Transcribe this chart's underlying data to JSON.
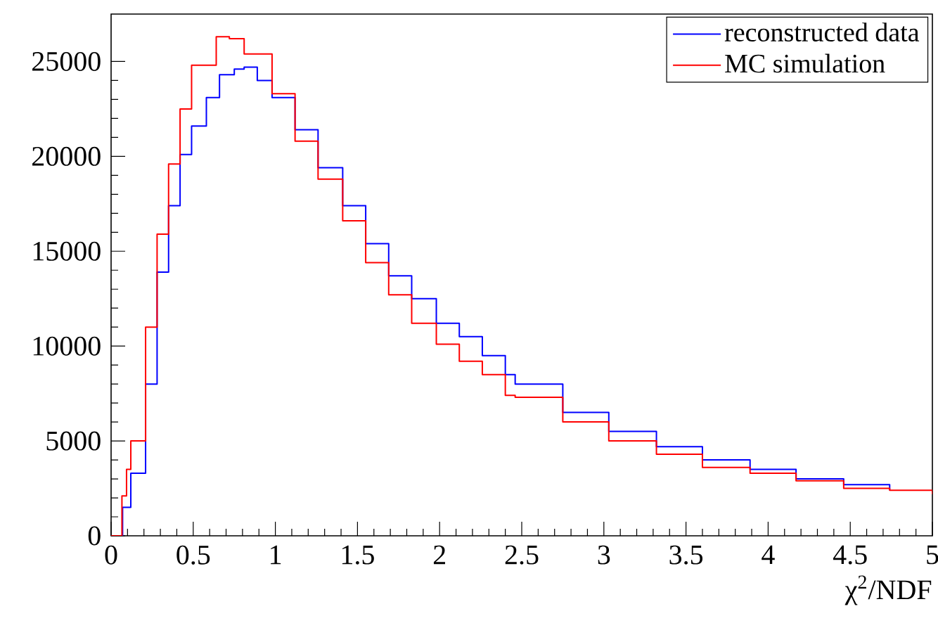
{
  "chart_data": {
    "type": "step",
    "xlabel": "χ$^{2}$/NDF",
    "xlim": [
      0,
      5
    ],
    "ylim": [
      0,
      27500
    ],
    "xticks": [
      0,
      0.5,
      1,
      1.5,
      2,
      2.5,
      3,
      3.5,
      4,
      4.5,
      5
    ],
    "yticks": [
      0,
      5000,
      10000,
      15000,
      20000,
      25000
    ],
    "legend": "top right",
    "grid": false,
    "series": [
      {
        "name": "reconstructed data",
        "color": "#0000ff",
        "x": [
          0,
          0.07,
          0.12,
          0.21,
          0.28,
          0.35,
          0.42,
          0.49,
          0.58,
          0.66,
          0.75,
          0.81,
          0.89,
          0.98,
          1.12,
          1.26,
          1.41,
          1.55,
          1.69,
          1.83,
          1.98,
          2.12,
          2.26,
          2.4,
          2.46,
          2.75,
          3.03,
          3.32,
          3.6,
          3.89,
          4.17,
          4.46,
          4.74
        ],
        "values": [
          0,
          1500,
          3300,
          8000,
          13900,
          17400,
          20100,
          21600,
          23100,
          24300,
          24600,
          24700,
          24000,
          23100,
          21400,
          19400,
          17400,
          15400,
          13700,
          12500,
          11200,
          10500,
          9500,
          8500,
          8000,
          6500,
          5500,
          4700,
          4000,
          3500,
          3000,
          2700,
          2400
        ]
      },
      {
        "name": "MC simulation",
        "color": "#ff0000",
        "x": [
          0,
          0.066,
          0.094,
          0.12,
          0.21,
          0.28,
          0.35,
          0.42,
          0.49,
          0.64,
          0.72,
          0.81,
          0.98,
          1.12,
          1.26,
          1.41,
          1.55,
          1.69,
          1.83,
          1.98,
          2.12,
          2.26,
          2.4,
          2.46,
          2.75,
          3.03,
          3.32,
          3.6,
          3.89,
          4.17,
          4.46,
          4.74,
          5
        ],
        "values": [
          0,
          2100,
          3500,
          5000,
          11000,
          15900,
          19600,
          22500,
          24800,
          26300,
          26200,
          25400,
          23300,
          20800,
          18800,
          16600,
          14400,
          12700,
          11200,
          10100,
          9200,
          8500,
          7400,
          7300,
          6000,
          5000,
          4300,
          3600,
          3300,
          2900,
          2500,
          2400,
          2200
        ]
      }
    ]
  }
}
